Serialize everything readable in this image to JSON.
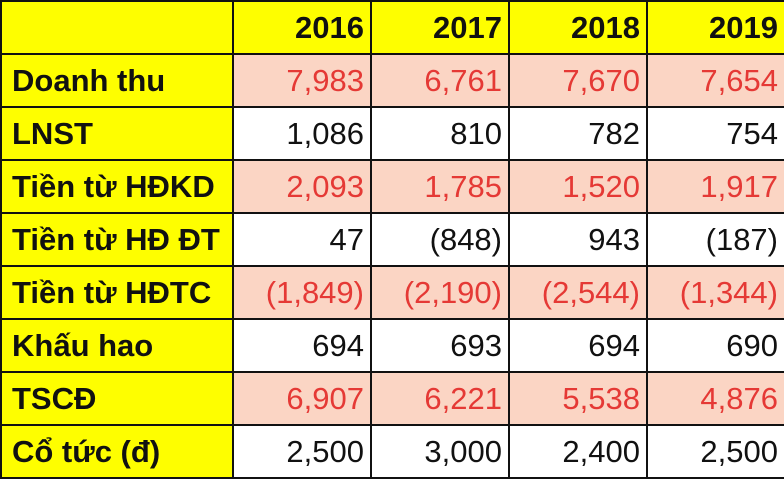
{
  "chart_data": {
    "type": "table",
    "columns": [
      "",
      "2016",
      "2017",
      "2018",
      "2019"
    ],
    "rows": [
      {
        "label": "Doanh thu",
        "values": [
          "7,983",
          "6,761",
          "7,670",
          "7,654"
        ],
        "shaded": true,
        "red": true
      },
      {
        "label": "LNST",
        "values": [
          "1,086",
          "810",
          "782",
          "754"
        ],
        "shaded": false,
        "red": false
      },
      {
        "label": "Tiền từ HĐKD",
        "values": [
          "2,093",
          "1,785",
          "1,520",
          "1,917"
        ],
        "shaded": true,
        "red": true
      },
      {
        "label": "Tiền từ HĐ ĐT",
        "values": [
          "47",
          "(848)",
          "943",
          "(187)"
        ],
        "shaded": false,
        "red": false
      },
      {
        "label": "Tiền từ HĐTC",
        "values": [
          "(1,849)",
          "(2,190)",
          "(2,544)",
          "(1,344)"
        ],
        "shaded": true,
        "red": true
      },
      {
        "label": "Khấu hao",
        "values": [
          "694",
          "693",
          "694",
          "690"
        ],
        "shaded": false,
        "red": false
      },
      {
        "label": "TSCĐ",
        "values": [
          "6,907",
          "6,221",
          "5,538",
          "4,876"
        ],
        "shaded": true,
        "red": true
      },
      {
        "label": "Cổ tức (đ)",
        "values": [
          "2,500",
          "3,000",
          "2,400",
          "2,500"
        ],
        "shaded": false,
        "red": false
      }
    ]
  },
  "colors": {
    "header_bg": "#fefe00",
    "shaded_row": "#fbd5c4",
    "red_text": "#e53935",
    "border": "#111111"
  }
}
